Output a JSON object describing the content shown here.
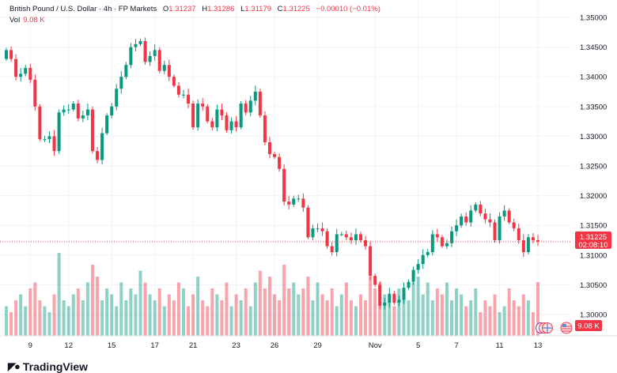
{
  "header": {
    "symbol": "British Pound / U.S. Dollar · 4h · FP Markets",
    "o_label": "O",
    "o": "1.31237",
    "h_label": "H",
    "h": "1.31286",
    "l_label": "L",
    "l": "1.31179",
    "c_label": "C",
    "c": "1.31225",
    "change": "−0.00010 (−0.01%)",
    "vol_label": "Vol",
    "vol": "9.08 K"
  },
  "price_tag": {
    "price": "1.31225",
    "countdown": "02:08:10"
  },
  "volume_tag": "9.08 K",
  "logo_text": "TradingView",
  "colors": {
    "up": "#089981",
    "down": "#f23645",
    "grid": "#f0f3fa"
  },
  "chart_data": {
    "type": "candlestick",
    "title": "British Pound / U.S. Dollar · 4h · FP Markets",
    "ylim": [
      1.2965,
      1.3525
    ],
    "y_ticks": [
      "1.35000",
      "1.34500",
      "1.34000",
      "1.33500",
      "1.33000",
      "1.32500",
      "1.32000",
      "1.31500",
      "1.31000",
      "1.30500",
      "1.30000"
    ],
    "x_ticks": [
      {
        "label": "9",
        "index": 5
      },
      {
        "label": "12",
        "index": 13
      },
      {
        "label": "15",
        "index": 22
      },
      {
        "label": "17",
        "index": 31
      },
      {
        "label": "21",
        "index": 39
      },
      {
        "label": "23",
        "index": 48
      },
      {
        "label": "26",
        "index": 56
      },
      {
        "label": "29",
        "index": 65
      },
      {
        "label": "Nov",
        "index": 77
      },
      {
        "label": "5",
        "index": 86
      },
      {
        "label": "7",
        "index": 94
      },
      {
        "label": "11",
        "index": 103
      },
      {
        "label": "13",
        "index": 111
      }
    ],
    "first_open": 1.343,
    "close": [
      1.3445,
      1.343,
      1.34,
      1.3405,
      1.3415,
      1.3395,
      1.335,
      1.3295,
      1.3295,
      1.33,
      1.3275,
      1.334,
      1.3345,
      1.3345,
      1.3355,
      1.333,
      1.3335,
      1.3345,
      1.3275,
      1.326,
      1.3305,
      1.3335,
      1.335,
      1.338,
      1.34,
      1.342,
      1.345,
      1.3455,
      1.346,
      1.3425,
      1.3435,
      1.3445,
      1.341,
      1.342,
      1.34,
      1.3385,
      1.337,
      1.337,
      1.3355,
      1.3315,
      1.3355,
      1.335,
      1.3325,
      1.3315,
      1.3345,
      1.3335,
      1.331,
      1.3325,
      1.3315,
      1.3355,
      1.334,
      1.336,
      1.3375,
      1.3335,
      1.329,
      1.327,
      1.3265,
      1.3245,
      1.319,
      1.3185,
      1.3195,
      1.3195,
      1.318,
      1.313,
      1.3145,
      1.3145,
      1.314,
      1.3115,
      1.3105,
      1.3135,
      1.3135,
      1.313,
      1.3125,
      1.3135,
      1.3125,
      1.3115,
      1.3065,
      1.305,
      1.3015,
      1.302,
      1.3035,
      1.302,
      1.3025,
      1.3045,
      1.3055,
      1.3075,
      1.3085,
      1.31,
      1.3105,
      1.3135,
      1.313,
      1.3115,
      1.312,
      1.314,
      1.315,
      1.3165,
      1.3155,
      1.3175,
      1.3185,
      1.317,
      1.316,
      1.3155,
      1.3125,
      1.3165,
      1.3175,
      1.3155,
      1.3145,
      1.3125,
      1.3105,
      1.313,
      1.3125,
      1.31225
    ],
    "volume_k": [
      5,
      4,
      6,
      7,
      5,
      8,
      9,
      6,
      5,
      4,
      7,
      14,
      6,
      5,
      7,
      8,
      6,
      9,
      12,
      10,
      6,
      8,
      7,
      5,
      9,
      6,
      8,
      7,
      11,
      9,
      7,
      6,
      8,
      5,
      7,
      6,
      9,
      8,
      5,
      7,
      10,
      6,
      5,
      8,
      7,
      6,
      9,
      5,
      7,
      6,
      8,
      5,
      9,
      11,
      8,
      10,
      7,
      6,
      12,
      8,
      9,
      7,
      8,
      10,
      6,
      9,
      7,
      6,
      8,
      5,
      7,
      9,
      6,
      5,
      7,
      6,
      10,
      8,
      9,
      7,
      6,
      5,
      8,
      7,
      6,
      9,
      10,
      7,
      9,
      6,
      8,
      7,
      9,
      6,
      8,
      7,
      5,
      6,
      8,
      4,
      6,
      5,
      7,
      4,
      5,
      8,
      6,
      5,
      7,
      6,
      4,
      9.08
    ],
    "volume_max_k": 14
  }
}
